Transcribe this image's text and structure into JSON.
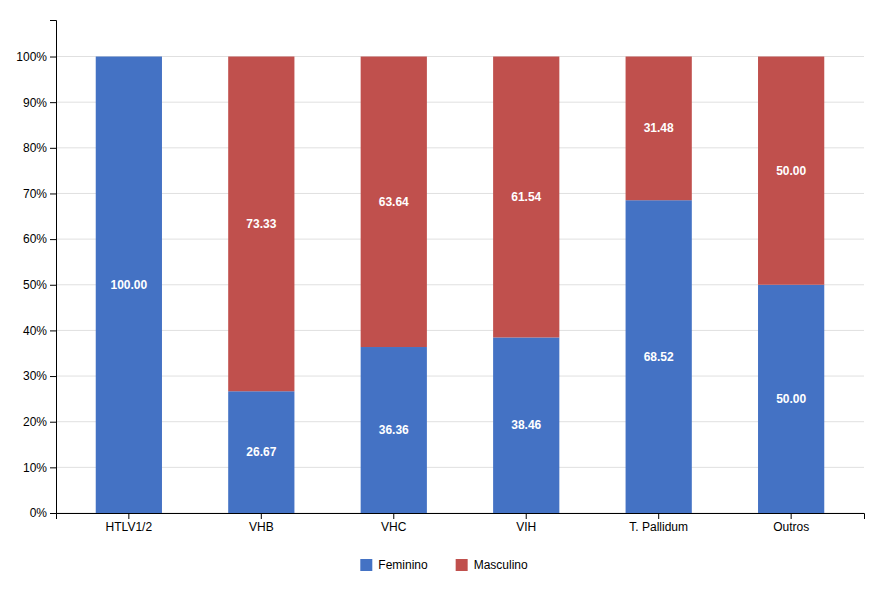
{
  "chart_data": {
    "type": "bar",
    "stacked": true,
    "categories": [
      "HTLV1/2",
      "VHB",
      "VHC",
      "VIH",
      "T. Pallidum",
      "Outros"
    ],
    "series": [
      {
        "name": "Feminino",
        "color": "#4472C4",
        "values": [
          100.0,
          26.67,
          36.36,
          38.46,
          68.52,
          50.0
        ],
        "value_labels": [
          "100.00",
          "26.67",
          "36.36",
          "38.46",
          "68.52",
          "50.00"
        ]
      },
      {
        "name": "Masculino",
        "color": "#C0504D",
        "values": [
          0.0,
          73.33,
          63.64,
          61.54,
          31.48,
          50.0
        ],
        "value_labels": [
          null,
          "73.33",
          "63.64",
          "61.54",
          "31.48",
          "50.00"
        ]
      }
    ],
    "ylim": [
      0,
      108
    ],
    "yticks": [
      {
        "value": 0,
        "label": "0%"
      },
      {
        "value": 10,
        "label": "10%"
      },
      {
        "value": 20,
        "label": "20%"
      },
      {
        "value": 30,
        "label": "30%"
      },
      {
        "value": 40,
        "label": "40%"
      },
      {
        "value": 50,
        "label": "50%"
      },
      {
        "value": 60,
        "label": "60%"
      },
      {
        "value": 70,
        "label": "70%"
      },
      {
        "value": 80,
        "label": "80%"
      },
      {
        "value": 90,
        "label": "90%"
      },
      {
        "value": 100,
        "label": "100%"
      }
    ],
    "grid": true,
    "legend": "bottom",
    "data_labels": true
  }
}
